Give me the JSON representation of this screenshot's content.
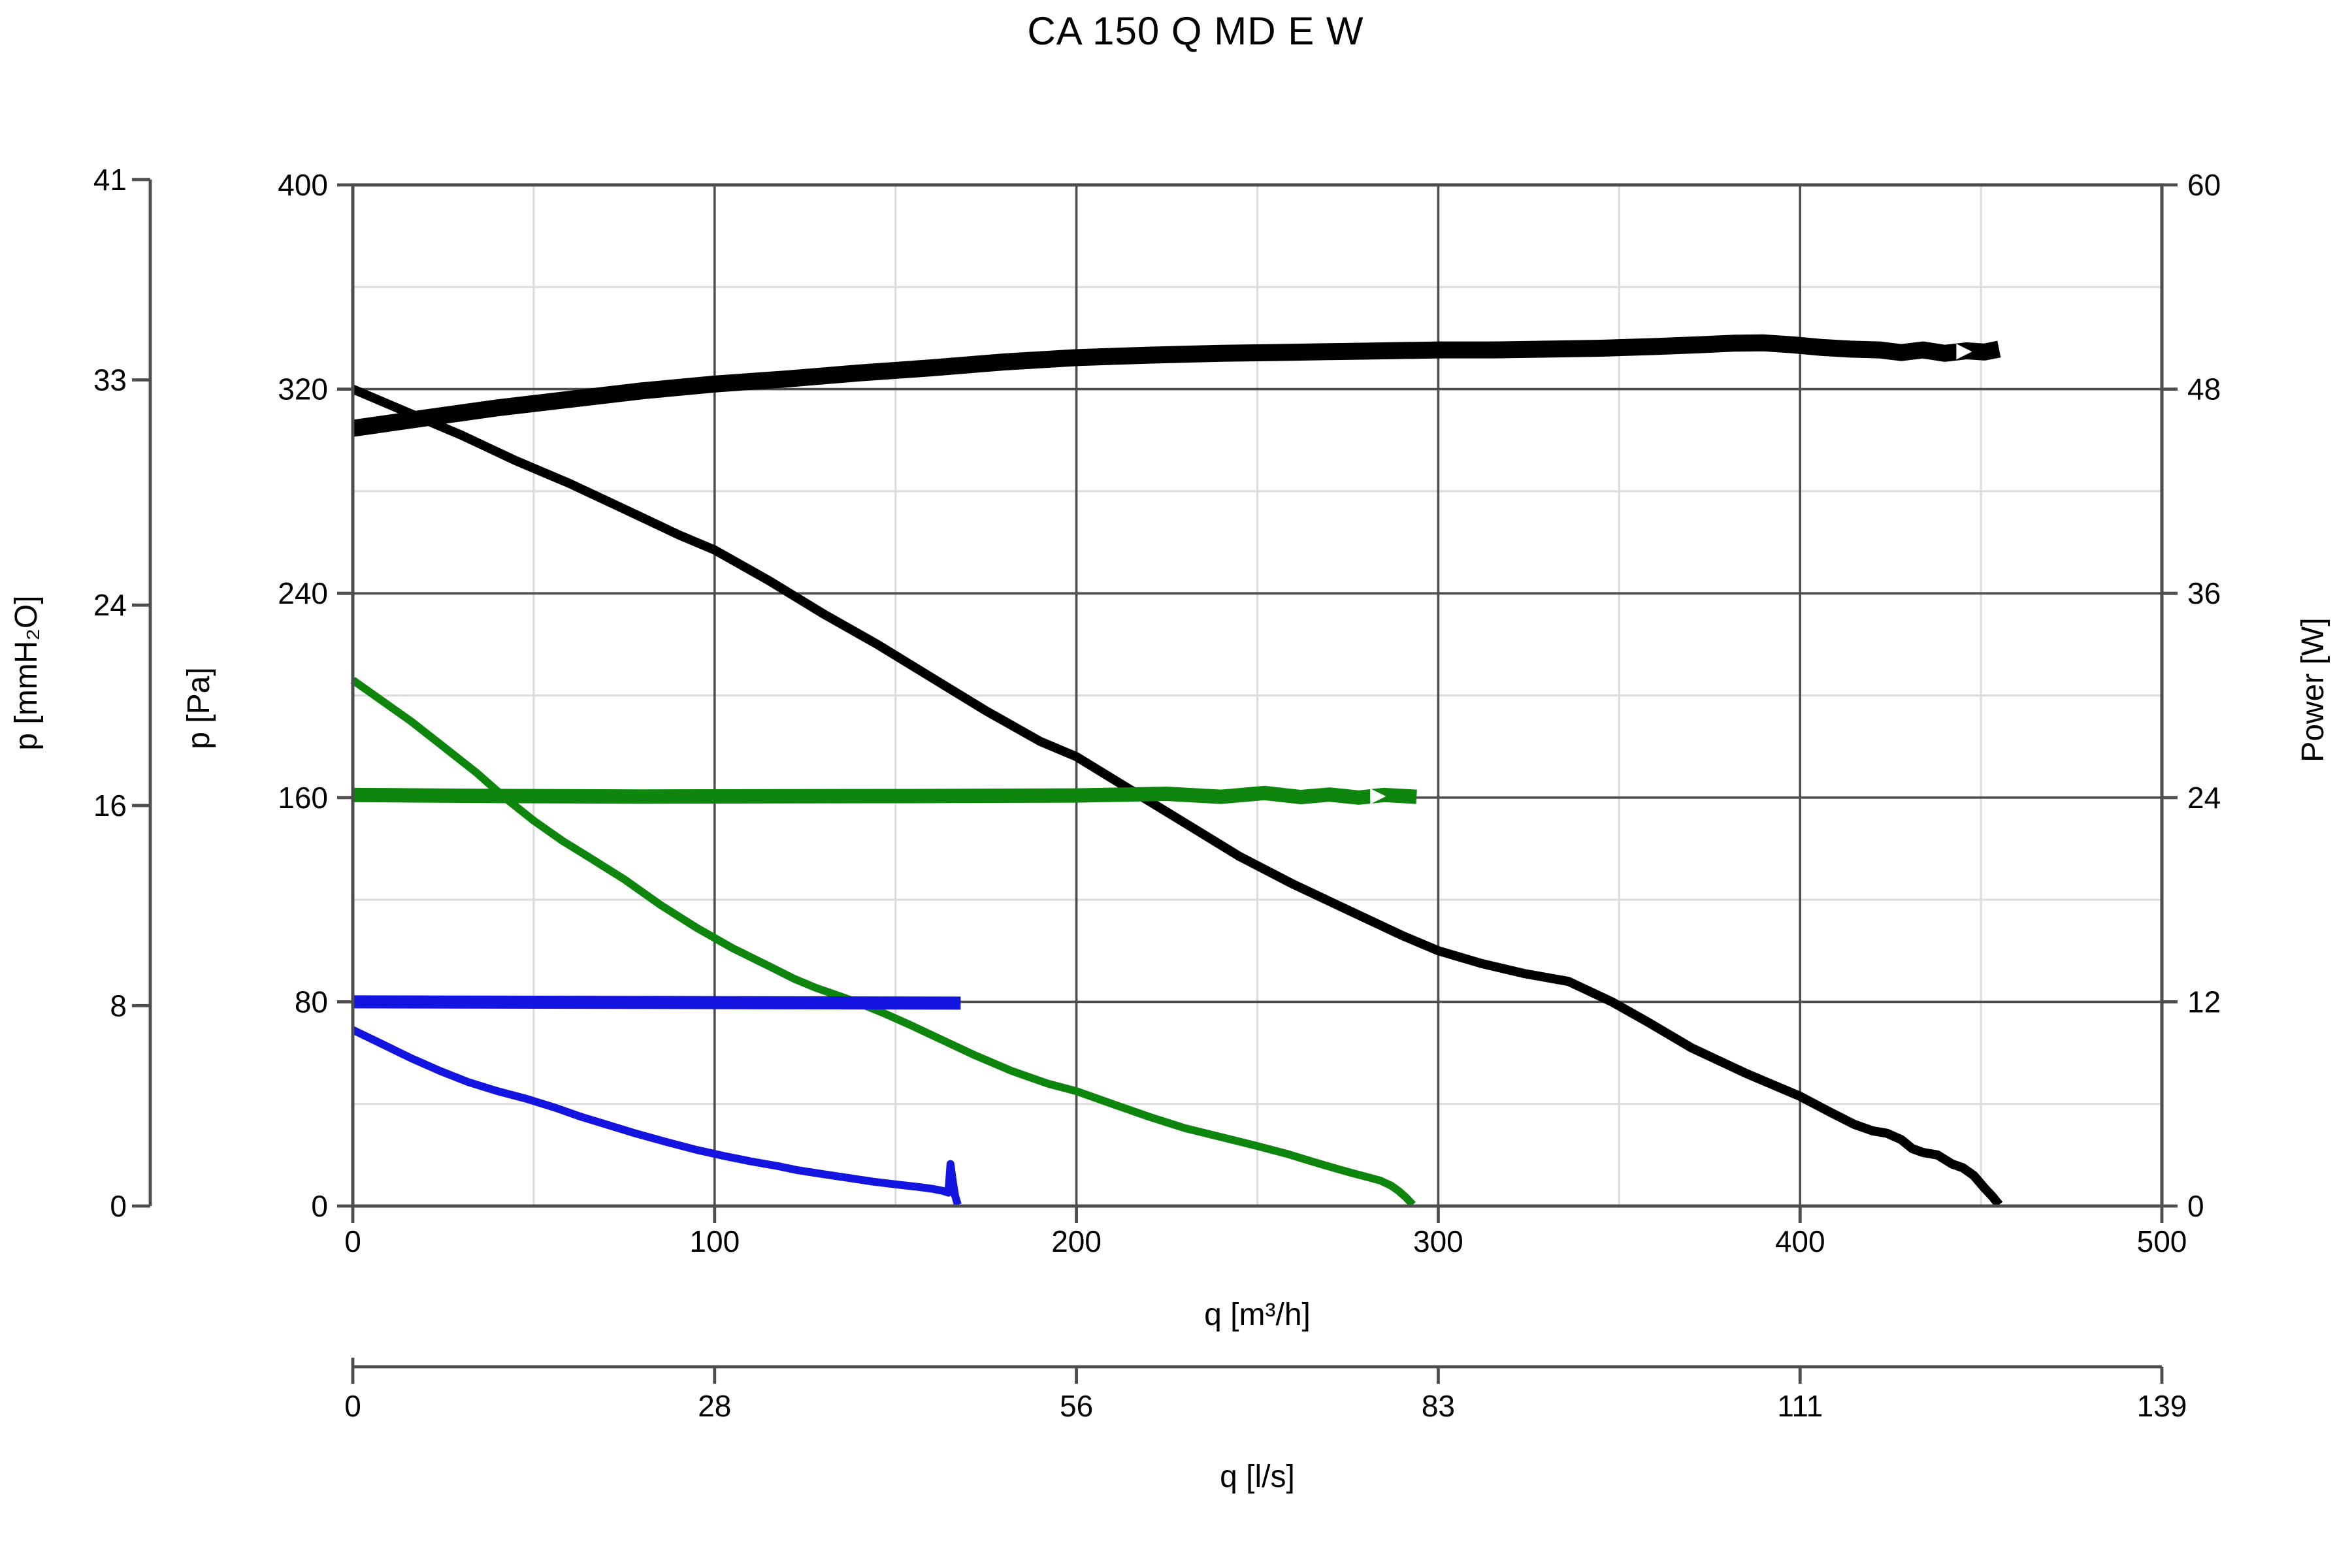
{
  "chart_data": {
    "type": "line",
    "title": "CA 150 Q MD E W",
    "axes": {
      "x_main": {
        "label": "q [m³/h]",
        "min": 0,
        "max": 500,
        "major_ticks": [
          0,
          100,
          200,
          300,
          400,
          500
        ],
        "minor_step": 50
      },
      "x_secondary": {
        "label": "q [l/s]",
        "tick_labels": [
          "0",
          "28",
          "56",
          "83",
          "111",
          "139"
        ]
      },
      "y_pa": {
        "label": "p [Pa]",
        "min": 0,
        "max": 400,
        "major_ticks": [
          0,
          80,
          160,
          240,
          320,
          400
        ],
        "minor_step": 40
      },
      "y_mmh2o": {
        "label": "p [mmH₂O]",
        "tick_labels": [
          "0",
          "8",
          "16",
          "24",
          "33",
          "41"
        ],
        "tick_positions_pa": [
          0,
          78.5,
          156.9,
          235.4,
          323.6,
          402.1
        ]
      },
      "y_power": {
        "label": "Power [W]",
        "min": 0,
        "max": 60,
        "major_ticks": [
          0,
          12,
          24,
          36,
          48,
          60
        ]
      }
    },
    "grid": {
      "major_color": "#4d4d4d",
      "minor_color": "#dddddd",
      "background": "#ffffff"
    },
    "series": [
      {
        "name": "pressure-curve-max-speed",
        "color": "#000000",
        "stroke_width": 7,
        "y_axis": "pa",
        "points": [
          [
            0,
            320
          ],
          [
            15,
            311
          ],
          [
            30,
            302
          ],
          [
            45,
            292
          ],
          [
            60,
            283
          ],
          [
            75,
            273
          ],
          [
            90,
            263
          ],
          [
            100,
            257
          ],
          [
            115,
            245
          ],
          [
            130,
            232
          ],
          [
            145,
            220
          ],
          [
            160,
            207
          ],
          [
            175,
            194
          ],
          [
            190,
            182
          ],
          [
            200,
            176
          ],
          [
            215,
            163
          ],
          [
            230,
            150
          ],
          [
            245,
            137
          ],
          [
            260,
            126
          ],
          [
            275,
            116
          ],
          [
            290,
            106
          ],
          [
            300,
            100
          ],
          [
            312,
            95
          ],
          [
            324,
            91
          ],
          [
            336,
            88
          ],
          [
            342,
            84
          ],
          [
            348,
            80
          ],
          [
            358,
            72
          ],
          [
            370,
            62
          ],
          [
            385,
            52
          ],
          [
            400,
            43
          ],
          [
            408,
            37
          ],
          [
            415,
            32
          ],
          [
            420,
            29.5
          ],
          [
            424,
            28.5
          ],
          [
            428,
            26
          ],
          [
            431,
            22.5
          ],
          [
            434,
            21
          ],
          [
            438,
            20
          ],
          [
            442,
            16.5
          ],
          [
            445,
            15
          ],
          [
            448,
            12
          ],
          [
            451,
            7
          ],
          [
            453,
            4
          ],
          [
            455,
            0.5
          ]
        ]
      },
      {
        "name": "power-curve",
        "color": "#000000",
        "stroke_width": 13,
        "y_axis": "power",
        "arrow_at": [
          445,
          50.2
        ],
        "points": [
          [
            0,
            45.7
          ],
          [
            20,
            46.3
          ],
          [
            40,
            46.9
          ],
          [
            60,
            47.4
          ],
          [
            80,
            47.9
          ],
          [
            100,
            48.3
          ],
          [
            120,
            48.6
          ],
          [
            140,
            48.95
          ],
          [
            160,
            49.25
          ],
          [
            180,
            49.6
          ],
          [
            200,
            49.85
          ],
          [
            220,
            50.0
          ],
          [
            240,
            50.1
          ],
          [
            255,
            50.15
          ],
          [
            270,
            50.2
          ],
          [
            285,
            50.25
          ],
          [
            300,
            50.3
          ],
          [
            315,
            50.3
          ],
          [
            330,
            50.35
          ],
          [
            345,
            50.4
          ],
          [
            360,
            50.5
          ],
          [
            372,
            50.6
          ],
          [
            382,
            50.7
          ],
          [
            390,
            50.72
          ],
          [
            398,
            50.6
          ],
          [
            406,
            50.45
          ],
          [
            414,
            50.35
          ],
          [
            422,
            50.3
          ],
          [
            428,
            50.15
          ],
          [
            434,
            50.3
          ],
          [
            440,
            50.1
          ],
          [
            446,
            50.25
          ],
          [
            451,
            50.18
          ],
          [
            455,
            50.35
          ]
        ]
      },
      {
        "name": "pressure-curve-mid-speed",
        "color": "#0e860e",
        "stroke_width": 6,
        "y_axis": "pa",
        "points": [
          [
            0,
            206
          ],
          [
            8,
            198
          ],
          [
            16,
            190
          ],
          [
            25,
            180
          ],
          [
            34,
            170
          ],
          [
            42,
            160
          ],
          [
            50,
            151
          ],
          [
            58,
            143
          ],
          [
            66,
            136
          ],
          [
            75,
            128
          ],
          [
            85,
            118
          ],
          [
            95,
            109
          ],
          [
            105,
            101
          ],
          [
            115,
            94
          ],
          [
            122,
            89
          ],
          [
            128,
            85.5
          ],
          [
            134,
            82.5
          ],
          [
            139,
            80
          ],
          [
            146,
            76
          ],
          [
            154,
            71
          ],
          [
            163,
            65
          ],
          [
            172,
            59
          ],
          [
            182,
            53
          ],
          [
            192,
            48
          ],
          [
            200,
            45
          ],
          [
            210,
            40
          ],
          [
            220,
            35
          ],
          [
            230,
            30.5
          ],
          [
            240,
            27
          ],
          [
            250,
            23.5
          ],
          [
            258,
            20.5
          ],
          [
            265,
            17.5
          ],
          [
            271,
            15
          ],
          [
            276,
            13
          ],
          [
            280,
            11.5
          ],
          [
            284,
            10
          ],
          [
            287,
            8
          ],
          [
            289,
            6
          ],
          [
            291,
            3.5
          ],
          [
            293,
            0.5
          ]
        ]
      },
      {
        "name": "working-line-mid-speed",
        "color": "#0e860e",
        "stroke_width": 11,
        "y_axis": "pa",
        "arrow_at": [
          283,
          160.5
        ],
        "points": [
          [
            0,
            161
          ],
          [
            40,
            160.6
          ],
          [
            80,
            160.4
          ],
          [
            120,
            160.5
          ],
          [
            160,
            160.6
          ],
          [
            200,
            160.8
          ],
          [
            225,
            161.5
          ],
          [
            240,
            160.3
          ],
          [
            252,
            161.8
          ],
          [
            262,
            160.2
          ],
          [
            270,
            161.2
          ],
          [
            278,
            160.0
          ],
          [
            285,
            161.0
          ],
          [
            294,
            160.3
          ]
        ]
      },
      {
        "name": "pressure-curve-min-speed",
        "color": "#1414e0",
        "stroke_width": 6,
        "y_axis": "pa",
        "points": [
          [
            0,
            69
          ],
          [
            8,
            63.5
          ],
          [
            16,
            58
          ],
          [
            24,
            53
          ],
          [
            32,
            48.5
          ],
          [
            40,
            45
          ],
          [
            48,
            42
          ],
          [
            56,
            38.5
          ],
          [
            63,
            35
          ],
          [
            70,
            32
          ],
          [
            78,
            28.5
          ],
          [
            87,
            25
          ],
          [
            95,
            22
          ],
          [
            103,
            19.5
          ],
          [
            110,
            17.5
          ],
          [
            118,
            15.5
          ],
          [
            123,
            14
          ],
          [
            130,
            12.5
          ],
          [
            137,
            11
          ],
          [
            144,
            9.5
          ],
          [
            150,
            8.5
          ],
          [
            156,
            7.5
          ],
          [
            160,
            6.8
          ],
          [
            163,
            6
          ],
          [
            164.6,
            5.2
          ],
          [
            165.2,
            16.5
          ],
          [
            165.9,
            9
          ],
          [
            166.5,
            4
          ],
          [
            167.2,
            0.5
          ]
        ]
      },
      {
        "name": "working-line-min-speed",
        "color": "#1414e0",
        "stroke_width": 10,
        "y_axis": "pa",
        "points": [
          [
            0,
            80
          ],
          [
            100,
            79.7
          ],
          [
            168,
            79.5
          ]
        ]
      }
    ]
  }
}
